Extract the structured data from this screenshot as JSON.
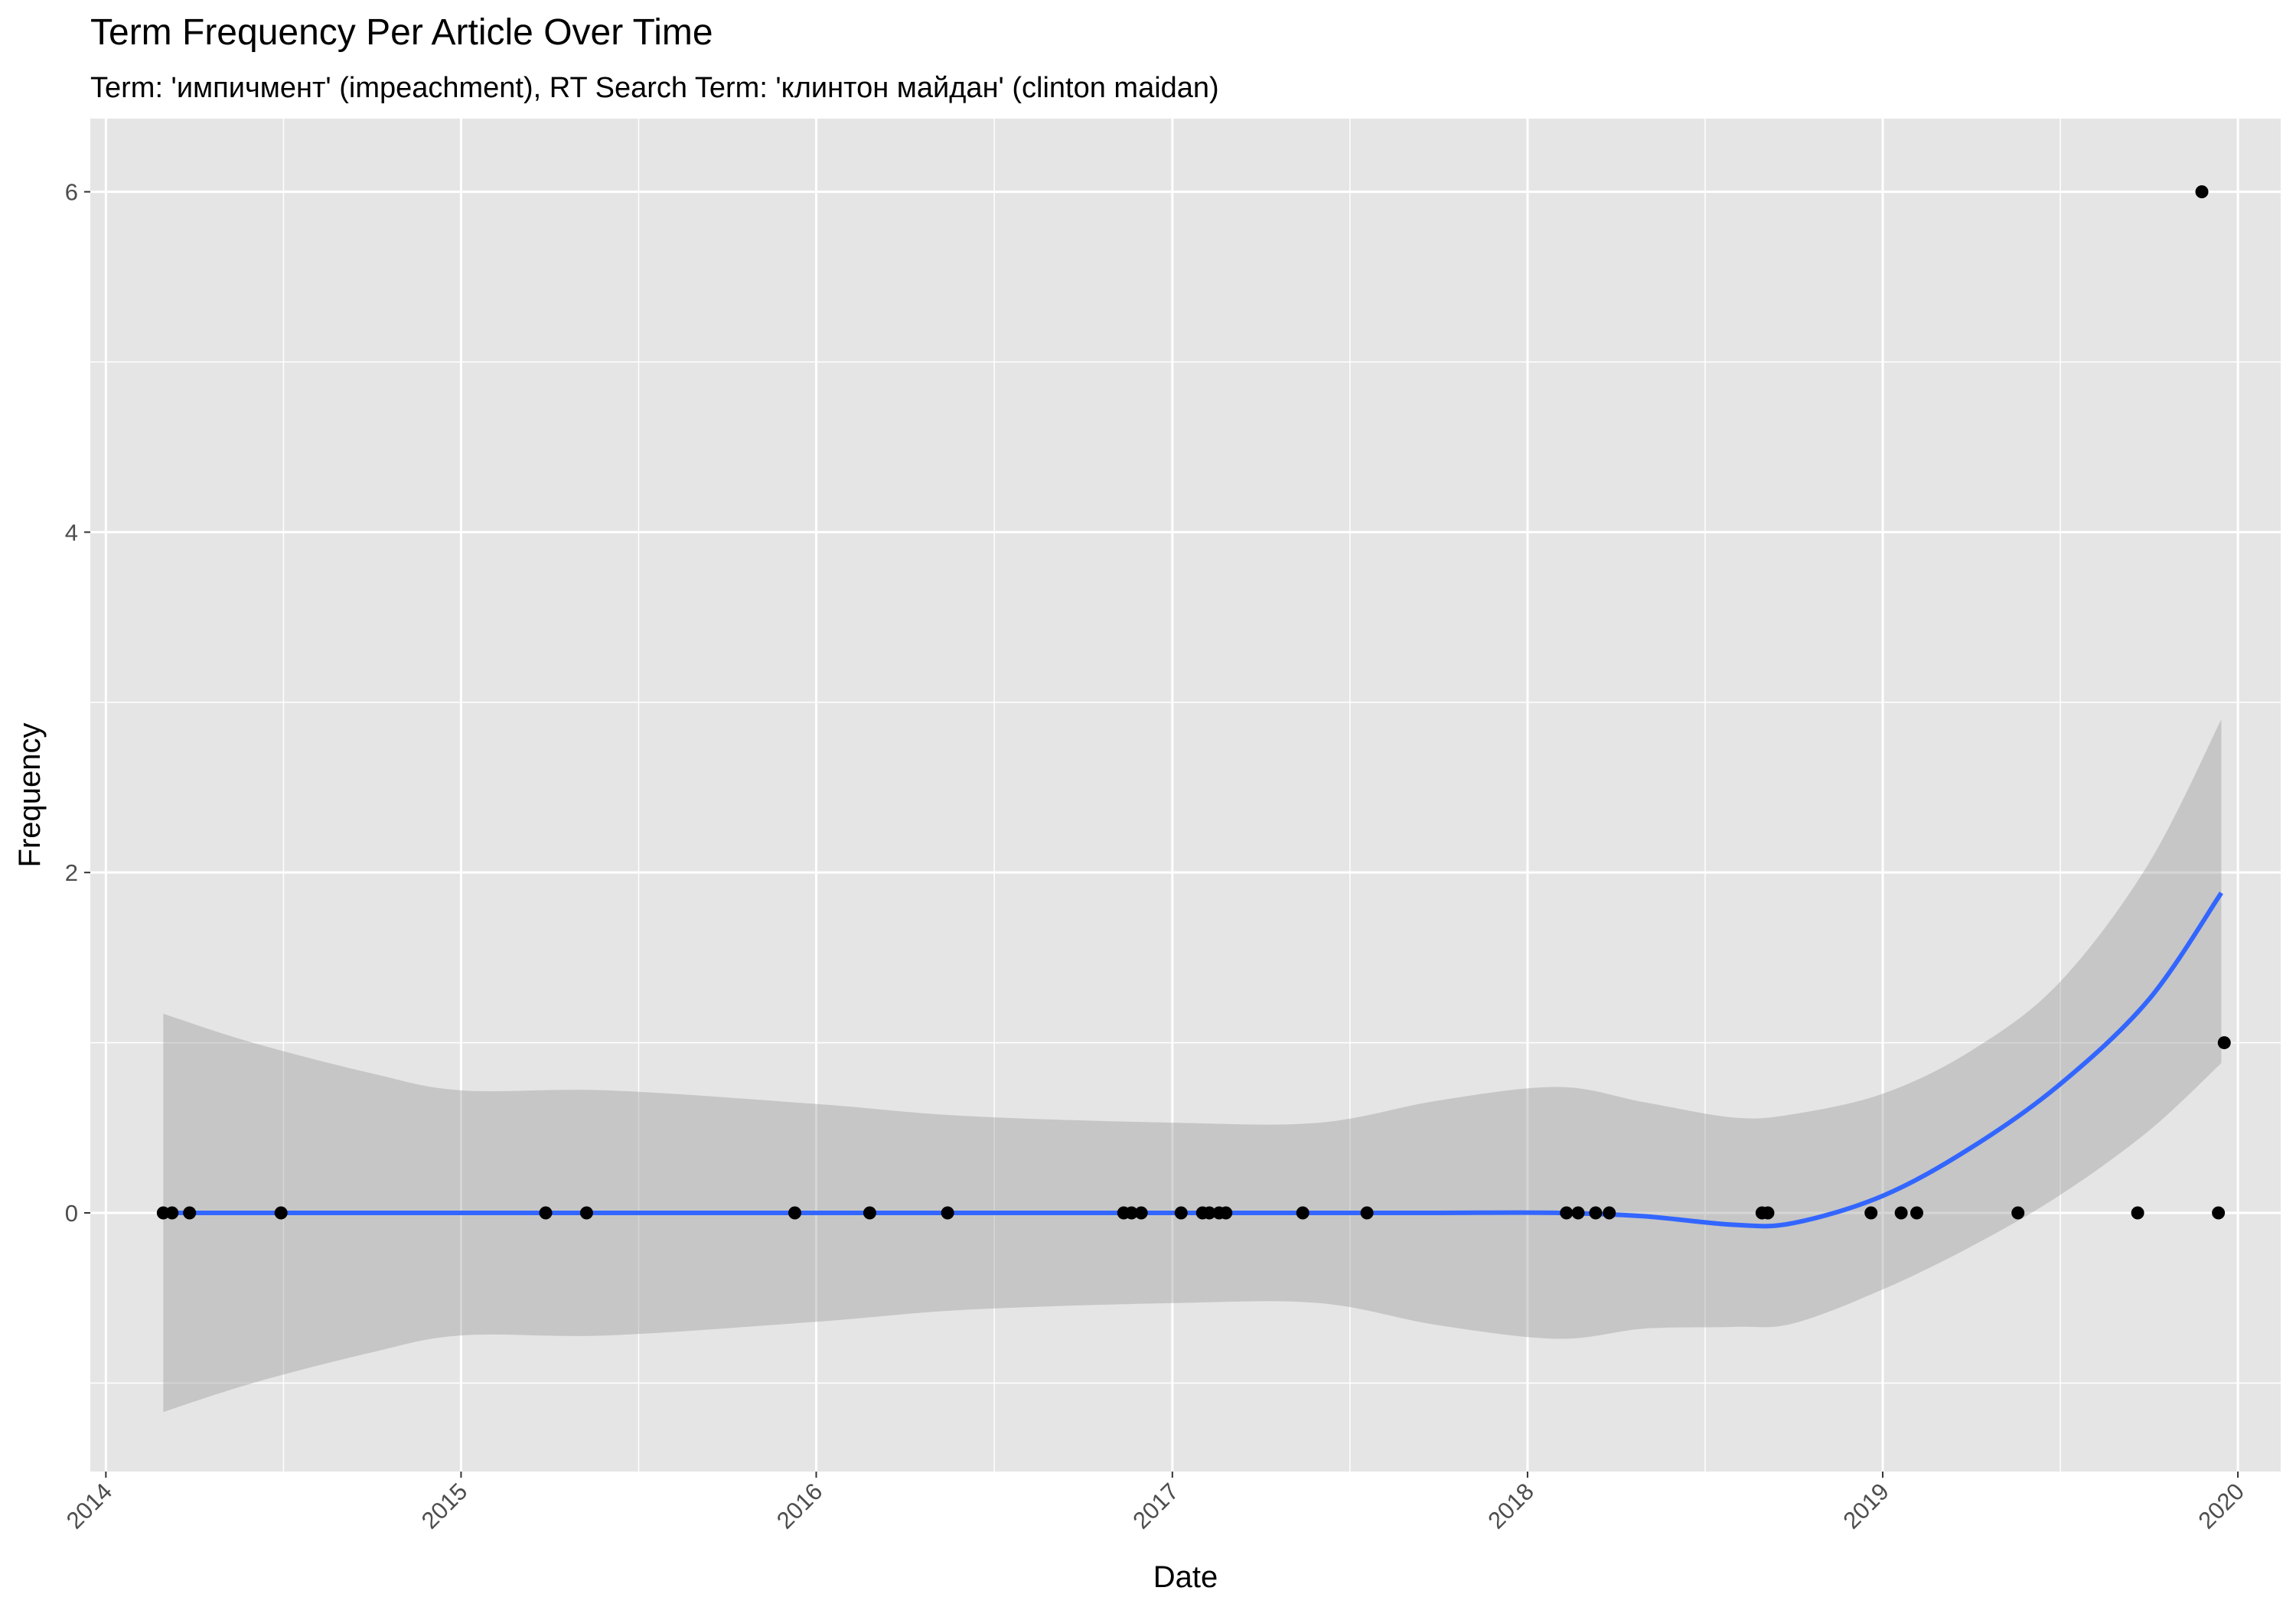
{
  "chart_data": {
    "type": "scatter",
    "title": "Term Frequency Per Article Over Time",
    "subtitle": "Term: 'импичмент' (impeachment), RT Search Term: 'клинтон майдан' (clinton maidan)",
    "xlabel": "Date",
    "ylabel": "Frequency",
    "x_ticks": [
      "2014",
      "2015",
      "2016",
      "2017",
      "2018",
      "2019",
      "2020"
    ],
    "y_ticks": [
      "0",
      "2",
      "4",
      "6"
    ],
    "xlim": [
      "2013-12-16",
      "2020-02-14"
    ],
    "ylim": [
      -1.52,
      6.43
    ],
    "grid": true,
    "panel_background": "#e5e5e5",
    "point_color": "#000000",
    "smooth_color": "#3366ff",
    "ribbon_color": "#999999",
    "points": [
      {
        "x": "2014-03-01",
        "y": 0
      },
      {
        "x": "2014-03-10",
        "y": 0
      },
      {
        "x": "2014-03-28",
        "y": 0
      },
      {
        "x": "2014-06-30",
        "y": 0
      },
      {
        "x": "2015-03-29",
        "y": 0
      },
      {
        "x": "2015-05-10",
        "y": 0
      },
      {
        "x": "2015-12-10",
        "y": 0
      },
      {
        "x": "2016-02-25",
        "y": 0
      },
      {
        "x": "2016-05-15",
        "y": 0
      },
      {
        "x": "2016-11-12",
        "y": 0
      },
      {
        "x": "2016-11-20",
        "y": 0
      },
      {
        "x": "2016-11-30",
        "y": 0
      },
      {
        "x": "2017-01-10",
        "y": 0
      },
      {
        "x": "2017-02-01",
        "y": 0
      },
      {
        "x": "2017-02-08",
        "y": 0
      },
      {
        "x": "2017-02-18",
        "y": 0
      },
      {
        "x": "2017-02-25",
        "y": 0
      },
      {
        "x": "2017-05-15",
        "y": 0
      },
      {
        "x": "2017-07-20",
        "y": 0
      },
      {
        "x": "2018-02-10",
        "y": 0
      },
      {
        "x": "2018-02-22",
        "y": 0
      },
      {
        "x": "2018-03-12",
        "y": 0
      },
      {
        "x": "2018-03-26",
        "y": 0
      },
      {
        "x": "2018-08-30",
        "y": 0
      },
      {
        "x": "2018-09-05",
        "y": 0
      },
      {
        "x": "2018-12-20",
        "y": 0
      },
      {
        "x": "2019-01-20",
        "y": 0
      },
      {
        "x": "2019-02-05",
        "y": 0
      },
      {
        "x": "2019-05-20",
        "y": 0
      },
      {
        "x": "2019-09-20",
        "y": 0
      },
      {
        "x": "2019-11-25",
        "y": 6
      },
      {
        "x": "2019-12-12",
        "y": 0
      },
      {
        "x": "2019-12-18",
        "y": 1
      }
    ],
    "smooth": [
      {
        "x": "2014-03-01",
        "y": 0.0,
        "lower": -1.17,
        "upper": 1.17
      },
      {
        "x": "2014-06-01",
        "y": 0.0,
        "lower": -1.0,
        "upper": 1.0
      },
      {
        "x": "2014-10-01",
        "y": 0.0,
        "lower": -0.82,
        "upper": 0.82
      },
      {
        "x": "2015-01-01",
        "y": 0.0,
        "lower": -0.72,
        "upper": 0.72
      },
      {
        "x": "2015-06-01",
        "y": 0.0,
        "lower": -0.72,
        "upper": 0.72
      },
      {
        "x": "2016-01-01",
        "y": 0.0,
        "lower": -0.64,
        "upper": 0.64
      },
      {
        "x": "2016-06-01",
        "y": 0.0,
        "lower": -0.57,
        "upper": 0.57
      },
      {
        "x": "2017-01-01",
        "y": 0.0,
        "lower": -0.53,
        "upper": 0.53
      },
      {
        "x": "2017-06-01",
        "y": 0.0,
        "lower": -0.53,
        "upper": 0.53
      },
      {
        "x": "2017-10-01",
        "y": 0.0,
        "lower": -0.66,
        "upper": 0.66
      },
      {
        "x": "2018-02-01",
        "y": 0.0,
        "lower": -0.74,
        "upper": 0.74
      },
      {
        "x": "2018-05-01",
        "y": -0.02,
        "lower": -0.68,
        "upper": 0.65
      },
      {
        "x": "2018-08-01",
        "y": -0.07,
        "lower": -0.67,
        "upper": 0.56
      },
      {
        "x": "2018-10-01",
        "y": -0.06,
        "lower": -0.65,
        "upper": 0.58
      },
      {
        "x": "2019-01-01",
        "y": 0.1,
        "lower": -0.45,
        "upper": 0.7
      },
      {
        "x": "2019-04-01",
        "y": 0.38,
        "lower": -0.2,
        "upper": 0.95
      },
      {
        "x": "2019-07-01",
        "y": 0.75,
        "lower": 0.1,
        "upper": 1.35
      },
      {
        "x": "2019-10-01",
        "y": 1.25,
        "lower": 0.48,
        "upper": 2.05
      },
      {
        "x": "2019-12-15",
        "y": 1.88,
        "lower": 0.88,
        "upper": 2.9
      }
    ]
  }
}
